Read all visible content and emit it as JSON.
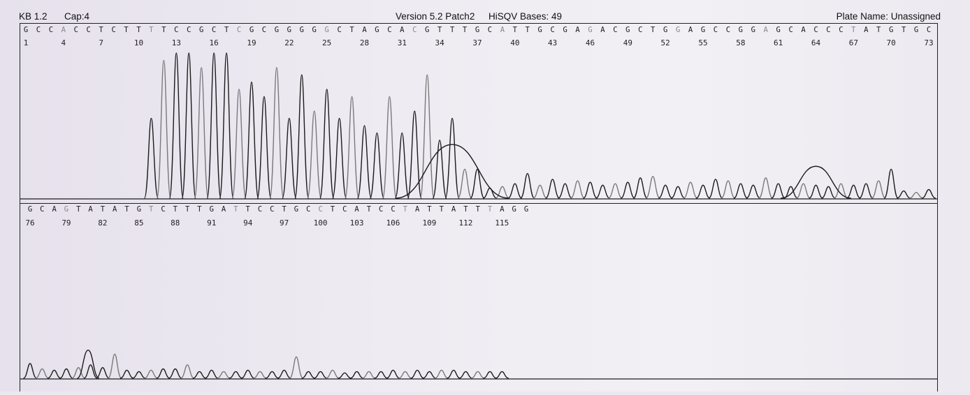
{
  "header": {
    "kb": "KB 1.2",
    "cap": "Cap:4",
    "version": "Version 5.2 Patch2",
    "hisqv": "HiSQV Bases: 49",
    "plate_name": "Plate Name: Unassigned"
  },
  "chart_data": {
    "type": "line",
    "title": "",
    "xlabel": "",
    "ylabel": "",
    "panels": [
      {
        "name": "panel-1",
        "base_calls": [
          "G",
          "C",
          "C",
          "A",
          "C",
          "C",
          "T",
          "C",
          "T",
          "T",
          "T",
          "T",
          "C",
          "C",
          "G",
          "C",
          "T",
          "C",
          "G",
          "C",
          "G",
          "G",
          "G",
          "G",
          "G",
          "C",
          "T",
          "A",
          "G",
          "C",
          "A",
          "C",
          "G",
          "T",
          "T",
          "T",
          "G",
          "C",
          "A",
          "T",
          "T",
          "G",
          "C",
          "G",
          "A",
          "G",
          "A",
          "C",
          "G",
          "C",
          "T",
          "G",
          "G",
          "A",
          "G",
          "C",
          "C",
          "G",
          "G",
          "A",
          "G",
          "C",
          "A",
          "C",
          "C",
          "C",
          "T",
          "A",
          "T",
          "G",
          "T",
          "G",
          "C"
        ],
        "position_labels": [
          "1",
          "4",
          "7",
          "10",
          "13",
          "16",
          "19",
          "22",
          "25",
          "28",
          "31",
          "34",
          "37",
          "40",
          "43",
          "46",
          "49",
          "52",
          "55",
          "58",
          "61",
          "64",
          "67",
          "70",
          "73"
        ],
        "peaks": [
          {
            "pos": 11,
            "h": 0.55
          },
          {
            "pos": 12,
            "h": 0.95
          },
          {
            "pos": 13,
            "h": 1.0
          },
          {
            "pos": 14,
            "h": 1.0
          },
          {
            "pos": 15,
            "h": 0.9
          },
          {
            "pos": 16,
            "h": 1.0
          },
          {
            "pos": 17,
            "h": 1.0
          },
          {
            "pos": 18,
            "h": 0.75
          },
          {
            "pos": 19,
            "h": 0.8
          },
          {
            "pos": 20,
            "h": 0.7
          },
          {
            "pos": 21,
            "h": 0.9
          },
          {
            "pos": 22,
            "h": 0.55
          },
          {
            "pos": 23,
            "h": 0.85
          },
          {
            "pos": 24,
            "h": 0.6
          },
          {
            "pos": 25,
            "h": 0.75
          },
          {
            "pos": 26,
            "h": 0.55
          },
          {
            "pos": 27,
            "h": 0.7
          },
          {
            "pos": 28,
            "h": 0.5
          },
          {
            "pos": 29,
            "h": 0.45
          },
          {
            "pos": 30,
            "h": 0.7
          },
          {
            "pos": 31,
            "h": 0.45
          },
          {
            "pos": 32,
            "h": 0.6
          },
          {
            "pos": 33,
            "h": 0.85
          },
          {
            "pos": 34,
            "h": 0.4
          },
          {
            "pos": 35,
            "h": 0.55
          },
          {
            "pos": 36,
            "h": 0.2
          },
          {
            "pos": 37,
            "h": 0.2
          },
          {
            "pos": 38,
            "h": 0.07
          },
          {
            "pos": 39,
            "h": 0.08
          },
          {
            "pos": 40,
            "h": 0.1
          },
          {
            "pos": 41,
            "h": 0.17
          },
          {
            "pos": 42,
            "h": 0.09
          },
          {
            "pos": 43,
            "h": 0.13
          },
          {
            "pos": 44,
            "h": 0.1
          },
          {
            "pos": 45,
            "h": 0.12
          },
          {
            "pos": 46,
            "h": 0.11
          },
          {
            "pos": 47,
            "h": 0.09
          },
          {
            "pos": 48,
            "h": 0.1
          },
          {
            "pos": 49,
            "h": 0.11
          },
          {
            "pos": 50,
            "h": 0.14
          },
          {
            "pos": 51,
            "h": 0.15
          },
          {
            "pos": 52,
            "h": 0.09
          },
          {
            "pos": 53,
            "h": 0.08
          },
          {
            "pos": 54,
            "h": 0.11
          },
          {
            "pos": 55,
            "h": 0.09
          },
          {
            "pos": 56,
            "h": 0.13
          },
          {
            "pos": 57,
            "h": 0.12
          },
          {
            "pos": 58,
            "h": 0.1
          },
          {
            "pos": 59,
            "h": 0.09
          },
          {
            "pos": 60,
            "h": 0.14
          },
          {
            "pos": 61,
            "h": 0.1
          },
          {
            "pos": 62,
            "h": 0.08
          },
          {
            "pos": 63,
            "h": 0.1
          },
          {
            "pos": 64,
            "h": 0.09
          },
          {
            "pos": 65,
            "h": 0.08
          },
          {
            "pos": 66,
            "h": 0.1
          },
          {
            "pos": 67,
            "h": 0.09
          },
          {
            "pos": 68,
            "h": 0.1
          },
          {
            "pos": 69,
            "h": 0.12
          },
          {
            "pos": 70,
            "h": 0.2
          },
          {
            "pos": 71,
            "h": 0.05
          },
          {
            "pos": 72,
            "h": 0.04
          },
          {
            "pos": 73,
            "h": 0.06
          }
        ],
        "broad_humps": [
          {
            "center": 35.0,
            "width": 4.5,
            "h": 0.37
          },
          {
            "center": 64.0,
            "width": 2.8,
            "h": 0.22
          }
        ]
      },
      {
        "name": "panel-2",
        "base_calls": [
          "G",
          "C",
          "A",
          "G",
          "T",
          "A",
          "T",
          "A",
          "T",
          "G",
          "T",
          "C",
          "T",
          "T",
          "T",
          "G",
          "A",
          "T",
          "T",
          "C",
          "C",
          "T",
          "G",
          "C",
          "C",
          "T",
          "C",
          "A",
          "T",
          "C",
          "C",
          "T",
          "A",
          "T",
          "T",
          "A",
          "T",
          "T",
          "T",
          "A",
          "G",
          "G"
        ],
        "position_labels": [
          "76",
          "79",
          "82",
          "85",
          "88",
          "91",
          "94",
          "97",
          "100",
          "103",
          "106",
          "109",
          "112",
          "115"
        ],
        "peaks": [
          {
            "pos": 76,
            "h": 0.11
          },
          {
            "pos": 77,
            "h": 0.07
          },
          {
            "pos": 78,
            "h": 0.06
          },
          {
            "pos": 79,
            "h": 0.07
          },
          {
            "pos": 80,
            "h": 0.08
          },
          {
            "pos": 81,
            "h": 0.1
          },
          {
            "pos": 82,
            "h": 0.08
          },
          {
            "pos": 83,
            "h": 0.18
          },
          {
            "pos": 84,
            "h": 0.06
          },
          {
            "pos": 85,
            "h": 0.05
          },
          {
            "pos": 86,
            "h": 0.06
          },
          {
            "pos": 87,
            "h": 0.07
          },
          {
            "pos": 88,
            "h": 0.07
          },
          {
            "pos": 89,
            "h": 0.1
          },
          {
            "pos": 90,
            "h": 0.05
          },
          {
            "pos": 91,
            "h": 0.06
          },
          {
            "pos": 92,
            "h": 0.05
          },
          {
            "pos": 93,
            "h": 0.05
          },
          {
            "pos": 94,
            "h": 0.06
          },
          {
            "pos": 95,
            "h": 0.05
          },
          {
            "pos": 96,
            "h": 0.05
          },
          {
            "pos": 97,
            "h": 0.06
          },
          {
            "pos": 98,
            "h": 0.16
          },
          {
            "pos": 99,
            "h": 0.05
          },
          {
            "pos": 100,
            "h": 0.05
          },
          {
            "pos": 101,
            "h": 0.06
          },
          {
            "pos": 102,
            "h": 0.04
          },
          {
            "pos": 103,
            "h": 0.05
          },
          {
            "pos": 104,
            "h": 0.05
          },
          {
            "pos": 105,
            "h": 0.05
          },
          {
            "pos": 106,
            "h": 0.06
          },
          {
            "pos": 107,
            "h": 0.05
          },
          {
            "pos": 108,
            "h": 0.06
          },
          {
            "pos": 109,
            "h": 0.05
          },
          {
            "pos": 110,
            "h": 0.06
          },
          {
            "pos": 111,
            "h": 0.06
          },
          {
            "pos": 112,
            "h": 0.05
          },
          {
            "pos": 113,
            "h": 0.05
          },
          {
            "pos": 114,
            "h": 0.05
          },
          {
            "pos": 115,
            "h": 0.05
          }
        ],
        "broad_humps": [
          {
            "center": 80.8,
            "width": 0.9,
            "h": 0.21
          }
        ]
      }
    ],
    "grid": false,
    "legend": "none"
  },
  "colors": {
    "trace_primary": "#1c1c1c",
    "trace_secondary": "#7a7a7a",
    "border": "#222222",
    "paper": "#ece8f0"
  }
}
